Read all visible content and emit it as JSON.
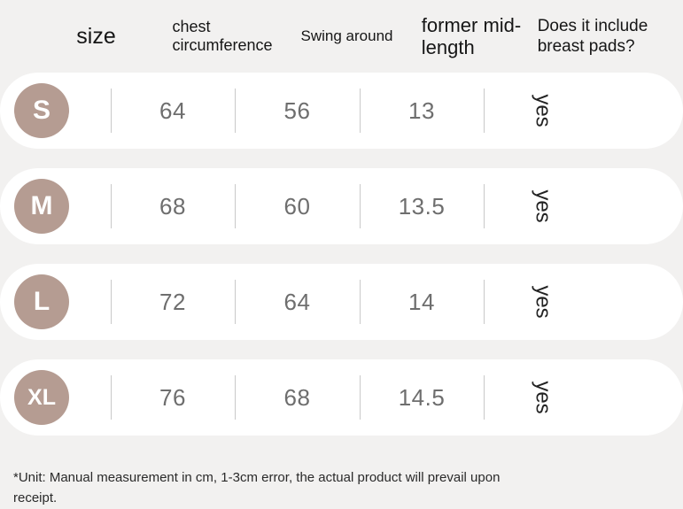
{
  "chart_data": {
    "type": "table",
    "title": "",
    "columns": [
      "size",
      "chest circumference",
      "Swing around",
      "former mid-length",
      "Does it include breast pads?"
    ],
    "rows": [
      [
        "S",
        "64",
        "56",
        "13",
        "yes"
      ],
      [
        "M",
        "68",
        "60",
        "13.5",
        "yes"
      ],
      [
        "L",
        "72",
        "64",
        "14",
        "yes"
      ],
      [
        "XL",
        "76",
        "68",
        "14.5",
        "yes"
      ]
    ],
    "note": "*Unit: Manual measurement in cm, 1-3cm error, the actual product will prevail upon receipt."
  },
  "header": {
    "col1": [
      "size"
    ],
    "col2": [
      "chest",
      "circumference"
    ],
    "col3": [
      "Swing around"
    ],
    "col4": [
      "former mid-",
      "length"
    ],
    "col5": [
      "Does it include",
      "breast pads?"
    ]
  },
  "footnote": "*Unit: Manual measurement in cm, 1-3cm error, the actual product will prevail upon receipt.",
  "colors": {
    "background": "#f2f1f0",
    "card": "#ffffff",
    "size_badge": "#b59c92",
    "value_text": "#6e6e6e",
    "divider": "#c9c9c9"
  }
}
